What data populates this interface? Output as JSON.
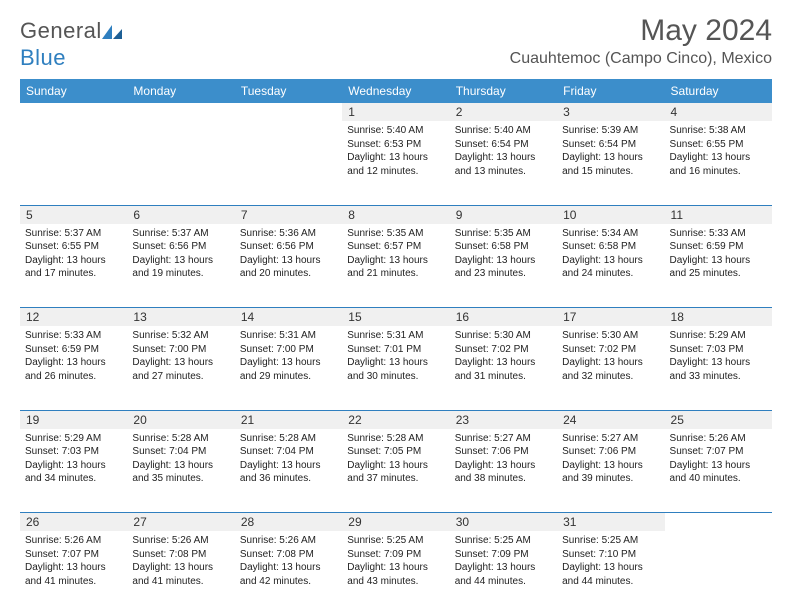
{
  "brand": {
    "name1": "General",
    "name2": "Blue"
  },
  "title": "May 2024",
  "location": "Cuauhtemoc (Campo Cinco), Mexico",
  "colors": {
    "header_bg": "#3c8ecb",
    "daynum_bg": "#f0f0f0",
    "border": "#2f7fbf",
    "text_dark": "#222222",
    "text_grey": "#555555"
  },
  "weekdays": [
    "Sunday",
    "Monday",
    "Tuesday",
    "Wednesday",
    "Thursday",
    "Friday",
    "Saturday"
  ],
  "weeks": [
    [
      null,
      null,
      null,
      {
        "n": "1",
        "sunrise": "5:40 AM",
        "sunset": "6:53 PM",
        "daylight": "13 hours and 12 minutes."
      },
      {
        "n": "2",
        "sunrise": "5:40 AM",
        "sunset": "6:54 PM",
        "daylight": "13 hours and 13 minutes."
      },
      {
        "n": "3",
        "sunrise": "5:39 AM",
        "sunset": "6:54 PM",
        "daylight": "13 hours and 15 minutes."
      },
      {
        "n": "4",
        "sunrise": "5:38 AM",
        "sunset": "6:55 PM",
        "daylight": "13 hours and 16 minutes."
      }
    ],
    [
      {
        "n": "5",
        "sunrise": "5:37 AM",
        "sunset": "6:55 PM",
        "daylight": "13 hours and 17 minutes."
      },
      {
        "n": "6",
        "sunrise": "5:37 AM",
        "sunset": "6:56 PM",
        "daylight": "13 hours and 19 minutes."
      },
      {
        "n": "7",
        "sunrise": "5:36 AM",
        "sunset": "6:56 PM",
        "daylight": "13 hours and 20 minutes."
      },
      {
        "n": "8",
        "sunrise": "5:35 AM",
        "sunset": "6:57 PM",
        "daylight": "13 hours and 21 minutes."
      },
      {
        "n": "9",
        "sunrise": "5:35 AM",
        "sunset": "6:58 PM",
        "daylight": "13 hours and 23 minutes."
      },
      {
        "n": "10",
        "sunrise": "5:34 AM",
        "sunset": "6:58 PM",
        "daylight": "13 hours and 24 minutes."
      },
      {
        "n": "11",
        "sunrise": "5:33 AM",
        "sunset": "6:59 PM",
        "daylight": "13 hours and 25 minutes."
      }
    ],
    [
      {
        "n": "12",
        "sunrise": "5:33 AM",
        "sunset": "6:59 PM",
        "daylight": "13 hours and 26 minutes."
      },
      {
        "n": "13",
        "sunrise": "5:32 AM",
        "sunset": "7:00 PM",
        "daylight": "13 hours and 27 minutes."
      },
      {
        "n": "14",
        "sunrise": "5:31 AM",
        "sunset": "7:00 PM",
        "daylight": "13 hours and 29 minutes."
      },
      {
        "n": "15",
        "sunrise": "5:31 AM",
        "sunset": "7:01 PM",
        "daylight": "13 hours and 30 minutes."
      },
      {
        "n": "16",
        "sunrise": "5:30 AM",
        "sunset": "7:02 PM",
        "daylight": "13 hours and 31 minutes."
      },
      {
        "n": "17",
        "sunrise": "5:30 AM",
        "sunset": "7:02 PM",
        "daylight": "13 hours and 32 minutes."
      },
      {
        "n": "18",
        "sunrise": "5:29 AM",
        "sunset": "7:03 PM",
        "daylight": "13 hours and 33 minutes."
      }
    ],
    [
      {
        "n": "19",
        "sunrise": "5:29 AM",
        "sunset": "7:03 PM",
        "daylight": "13 hours and 34 minutes."
      },
      {
        "n": "20",
        "sunrise": "5:28 AM",
        "sunset": "7:04 PM",
        "daylight": "13 hours and 35 minutes."
      },
      {
        "n": "21",
        "sunrise": "5:28 AM",
        "sunset": "7:04 PM",
        "daylight": "13 hours and 36 minutes."
      },
      {
        "n": "22",
        "sunrise": "5:28 AM",
        "sunset": "7:05 PM",
        "daylight": "13 hours and 37 minutes."
      },
      {
        "n": "23",
        "sunrise": "5:27 AM",
        "sunset": "7:06 PM",
        "daylight": "13 hours and 38 minutes."
      },
      {
        "n": "24",
        "sunrise": "5:27 AM",
        "sunset": "7:06 PM",
        "daylight": "13 hours and 39 minutes."
      },
      {
        "n": "25",
        "sunrise": "5:26 AM",
        "sunset": "7:07 PM",
        "daylight": "13 hours and 40 minutes."
      }
    ],
    [
      {
        "n": "26",
        "sunrise": "5:26 AM",
        "sunset": "7:07 PM",
        "daylight": "13 hours and 41 minutes."
      },
      {
        "n": "27",
        "sunrise": "5:26 AM",
        "sunset": "7:08 PM",
        "daylight": "13 hours and 41 minutes."
      },
      {
        "n": "28",
        "sunrise": "5:26 AM",
        "sunset": "7:08 PM",
        "daylight": "13 hours and 42 minutes."
      },
      {
        "n": "29",
        "sunrise": "5:25 AM",
        "sunset": "7:09 PM",
        "daylight": "13 hours and 43 minutes."
      },
      {
        "n": "30",
        "sunrise": "5:25 AM",
        "sunset": "7:09 PM",
        "daylight": "13 hours and 44 minutes."
      },
      {
        "n": "31",
        "sunrise": "5:25 AM",
        "sunset": "7:10 PM",
        "daylight": "13 hours and 44 minutes."
      },
      null
    ]
  ],
  "labels": {
    "sunrise": "Sunrise:",
    "sunset": "Sunset:",
    "daylight": "Daylight:"
  }
}
